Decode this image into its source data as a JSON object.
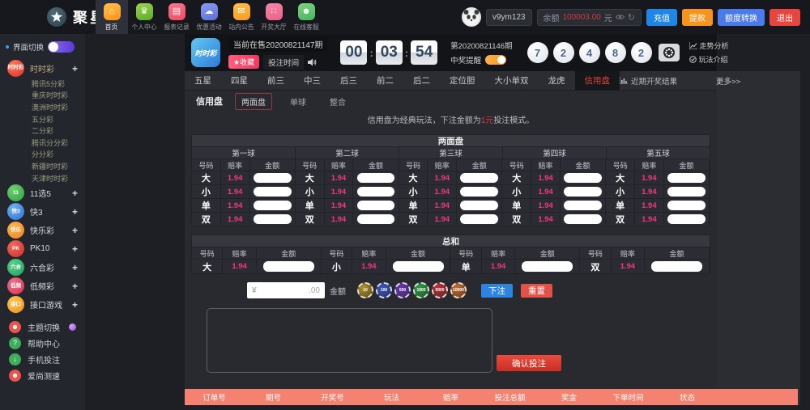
{
  "colors": {
    "accent_pink": "#f0397b",
    "footer_salmon": "#f58170",
    "note_red": "#d03a3a",
    "balance_red": "#d03a3a"
  },
  "topbar": {
    "logo_text": "聚星",
    "nav": [
      {
        "label": "首页",
        "icon": "home",
        "glyph": "⌂",
        "color1": "#ffc04d",
        "color2": "#ff9416",
        "active": true
      },
      {
        "label": "个人中心",
        "icon": "crown",
        "glyph": "♛",
        "color1": "#9ed44d",
        "color2": "#5cab2a",
        "active": false
      },
      {
        "label": "报表记录",
        "icon": "report",
        "glyph": "▤",
        "color1": "#f7778c",
        "color2": "#ef4b66",
        "active": false
      },
      {
        "label": "优惠活动",
        "icon": "cloud",
        "glyph": "☁",
        "color1": "#8a9bf0",
        "color2": "#5e6fd8",
        "active": false
      },
      {
        "label": "站内公告",
        "icon": "mail",
        "glyph": "✉",
        "color1": "#ffbe55",
        "color2": "#f79c1d",
        "active": false
      },
      {
        "label": "开奖大厅",
        "icon": "grid",
        "glyph": "∷",
        "color1": "#f588a8",
        "color2": "#ee5f86",
        "active": false
      },
      {
        "label": "在线客服",
        "icon": "person",
        "glyph": "☻",
        "color1": "#7ed484",
        "color2": "#46b45c",
        "active": false
      }
    ],
    "username": "v9ym123",
    "balance_label": "余额",
    "balance_value": "100003.00",
    "balance_unit": "元",
    "actions": [
      {
        "label": "充值",
        "color": "#1f86e8"
      },
      {
        "label": "提款",
        "color": "#f7941d"
      },
      {
        "label": "额度转换",
        "color": "#4b7bea"
      },
      {
        "label": "退出",
        "color": "#e64540"
      }
    ]
  },
  "sidebar": {
    "ui_switch_label": "界面切换",
    "groups": [
      {
        "label": "时时彩",
        "abbr": "时时彩",
        "color1": "#ff7a59",
        "color2": "#dd2c2c",
        "plus": "+",
        "children": [
          "腾讯5分彩",
          "重庆时时彩",
          "澳洲时时彩",
          "五分彩",
          "二分彩",
          "腾讯分分彩",
          "分分彩",
          "新疆时时彩",
          "天津时时彩"
        ]
      },
      {
        "label": "11选5",
        "abbr": "11",
        "color1": "#6fd06f",
        "color2": "#2f9e42",
        "plus": "+",
        "children": []
      },
      {
        "label": "快3",
        "abbr": "快3",
        "color1": "#6fb3f0",
        "color2": "#2f6fd0",
        "plus": "+",
        "children": []
      },
      {
        "label": "快乐彩",
        "abbr": "快乐",
        "color1": "#ffb84d",
        "color2": "#f07c1d",
        "plus": "+",
        "children": []
      },
      {
        "label": "PK10",
        "abbr": "PK",
        "color1": "#f06a5a",
        "color2": "#cf2b2b",
        "plus": "+",
        "children": []
      },
      {
        "label": "六合彩",
        "abbr": "六合",
        "color1": "#5ad08a",
        "color2": "#1f9e60",
        "plus": "+",
        "children": []
      },
      {
        "label": "低频彩",
        "abbr": "低频",
        "color1": "#f0708a",
        "color2": "#d8304f",
        "plus": "+",
        "children": []
      },
      {
        "label": "接口游戏",
        "abbr": "接口",
        "color1": "#ffc44d",
        "color2": "#f0921d",
        "plus": "+",
        "children": []
      }
    ],
    "tools": [
      {
        "label": "主题切换",
        "icon": "theme-person",
        "glyph": "☻",
        "color": "#e8554d",
        "badge": true
      },
      {
        "label": "帮助中心",
        "icon": "help",
        "glyph": "?",
        "color": "#3fae5c",
        "badge": false
      },
      {
        "label": "手机投注",
        "icon": "download",
        "glyph": "↓",
        "color": "#3fae5c",
        "badge": false
      },
      {
        "label": "爱尚测速",
        "icon": "speed-person",
        "glyph": "☻",
        "color": "#e8554d",
        "badge": false
      }
    ]
  },
  "game_header": {
    "logo_text": "时时彩",
    "current_issue": "当前在售20200821147期",
    "favorite_label": "★收藏",
    "bet_time_label": "投注时间",
    "countdown": {
      "hours": "00",
      "minutes": "03",
      "seconds": "54"
    },
    "last_issue": "第20200821146期",
    "win_remind_label": "中奖提醒",
    "balls": [
      "7",
      "2",
      "4",
      "8",
      "2"
    ],
    "trend_label": "走势分析",
    "rules_label": "玩法介绍"
  },
  "tabs": {
    "items": [
      {
        "label": "五星",
        "active": false
      },
      {
        "label": "四星",
        "active": false
      },
      {
        "label": "前三",
        "active": false
      },
      {
        "label": "中三",
        "active": false
      },
      {
        "label": "后三",
        "active": false
      },
      {
        "label": "前二",
        "active": false
      },
      {
        "label": "后二",
        "active": false
      },
      {
        "label": "定位胆",
        "active": false
      },
      {
        "label": "大小单双",
        "active": false
      },
      {
        "label": "龙虎",
        "active": false
      },
      {
        "label": "信用盘",
        "active": true
      }
    ],
    "recent_label": "近期开奖结果",
    "more_label": "更多>>"
  },
  "subtabs": {
    "category": "信用盘",
    "items": [
      {
        "label": "两面盘",
        "selected": true
      },
      {
        "label": "单球",
        "selected": false
      },
      {
        "label": "整合",
        "selected": false
      }
    ]
  },
  "note": {
    "prefix": "信用盘为经典玩法，下注金额为",
    "highlight": "1元",
    "suffix": "投注模式。"
  },
  "two_side_board": {
    "title": "两面盘",
    "groups": [
      "第一球",
      "第二球",
      "第三球",
      "第四球",
      "第五球"
    ],
    "columns": [
      "号码",
      "赔率",
      "金额"
    ],
    "rows": [
      {
        "name": "大",
        "odds": "1.94"
      },
      {
        "name": "小",
        "odds": "1.94"
      },
      {
        "name": "单",
        "odds": "1.94"
      },
      {
        "name": "双",
        "odds": "1.94"
      }
    ]
  },
  "sum_board": {
    "title": "总和",
    "columns": [
      "号码",
      "赔率",
      "金额"
    ],
    "cells": [
      {
        "name": "大",
        "odds": "1.94"
      },
      {
        "name": "小",
        "odds": "1.94"
      },
      {
        "name": "单",
        "odds": "1.94"
      },
      {
        "name": "双",
        "odds": "1.94"
      }
    ]
  },
  "bet_bar": {
    "currency": "¥",
    "amount_value": "",
    "amount_decimal": ".00",
    "amount_label": "金额",
    "chips": [
      {
        "value": "10",
        "color": "#b3912b"
      },
      {
        "value": "100",
        "color": "#3a55c0"
      },
      {
        "value": "500",
        "color": "#6a36b8"
      },
      {
        "value": "1000",
        "color": "#2f9e44"
      },
      {
        "value": "5000",
        "color": "#c03030"
      },
      {
        "value": "10000",
        "color": "#cb6d2a"
      }
    ],
    "bet_label": "下注",
    "reset_label": "重置"
  },
  "confirm_label": "确认投注",
  "orders_table": {
    "columns": [
      "订单号",
      "期号",
      "开奖号",
      "玩法",
      "赔率",
      "投注总额",
      "奖金",
      "下单时间",
      "状态"
    ]
  }
}
